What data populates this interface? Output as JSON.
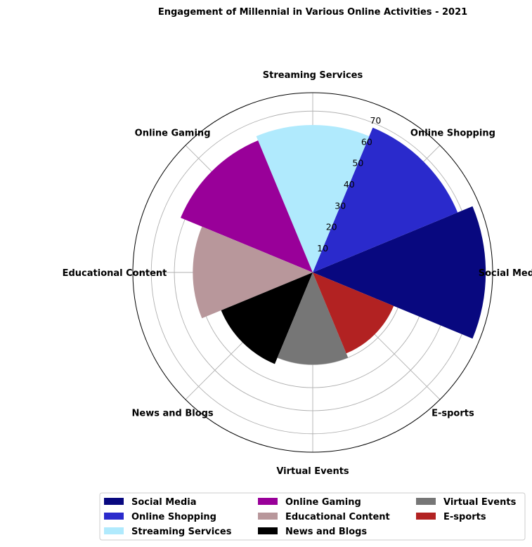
{
  "chart_data": {
    "type": "polar-bar",
    "title": "Engagement of Millennial in Various Online Activities - 2021",
    "categories": [
      "Social Media",
      "Online Shopping",
      "Streaming Services",
      "Online Gaming",
      "Educational Content",
      "News and Blogs",
      "Virtual Events",
      "E-sports"
    ],
    "values": [
      75,
      68,
      64,
      62,
      52,
      43,
      40,
      38
    ],
    "colors": [
      "#08087f",
      "#2a2acc",
      "#b0eafd",
      "#990099",
      "#b8979b",
      "#000000",
      "#767676",
      "#b22222"
    ],
    "radial_ticks": [
      "10",
      "20",
      "30",
      "40",
      "50",
      "60",
      "70"
    ],
    "rmax": 78,
    "grid": true,
    "legend": {
      "placement": "bottom-center",
      "columns": 3,
      "entries": [
        "Social Media",
        "Online Shopping",
        "Streaming Services",
        "Online Gaming",
        "Educational Content",
        "News and Blogs",
        "Virtual Events",
        "E-sports"
      ]
    }
  }
}
